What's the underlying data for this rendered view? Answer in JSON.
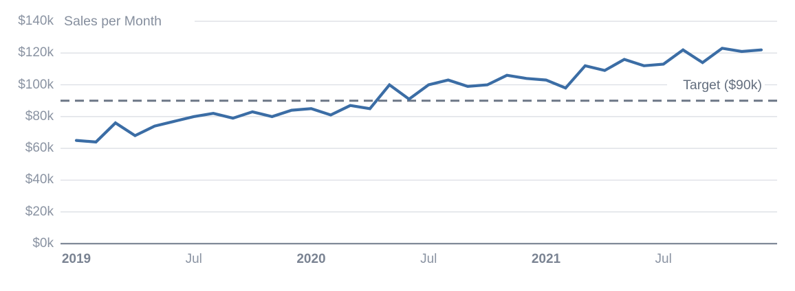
{
  "chart_data": {
    "type": "line",
    "title": "Sales per Month",
    "x_range": "Jan 2019 - Dec 2021, monthly (36 points)",
    "series": [
      {
        "name": "Sales per Month",
        "values_unit": "thousand dollars",
        "values": [
          65,
          64,
          76,
          68,
          74,
          77,
          80,
          82,
          79,
          83,
          80,
          84,
          85,
          81,
          87,
          85,
          100,
          91,
          100,
          103,
          99,
          100,
          106,
          104,
          103,
          98,
          112,
          109,
          116,
          112,
          113,
          122,
          114,
          123,
          121,
          122
        ]
      }
    ],
    "target": {
      "label": "Target ($90k)",
      "value": 90,
      "style": "dashed"
    },
    "y_axis": {
      "ylim": [
        0,
        140
      ],
      "tick_values": [
        140,
        120,
        100,
        80,
        60,
        40,
        20,
        0
      ],
      "tick_labels": [
        "$140k",
        "$120k",
        "$100k",
        "$80k",
        "$60k",
        "$40k",
        "$20k",
        "$0k"
      ]
    },
    "x_axis": {
      "tick_labels": [
        {
          "label": "2019",
          "month_index": 0,
          "bold": true
        },
        {
          "label": "Jul",
          "month_index": 6,
          "bold": false
        },
        {
          "label": "2020",
          "month_index": 12,
          "bold": true
        },
        {
          "label": "Jul",
          "month_index": 18,
          "bold": false
        },
        {
          "label": "2021",
          "month_index": 24,
          "bold": true
        },
        {
          "label": "Jul",
          "month_index": 30,
          "bold": false
        }
      ]
    },
    "grid": "horizontal only",
    "legend": "none (title inline at top-left, target label inline above dashed line at right)",
    "colors": {
      "line": "#3B6DA5",
      "gridline": "#D9DCE2",
      "x_axis_line": "#7F8897",
      "target_line": "#6C7686",
      "tick_text": "#8A93A2",
      "year_text": "#7A8392",
      "title_text": "#868F9E",
      "target_text": "#636E7E"
    }
  }
}
